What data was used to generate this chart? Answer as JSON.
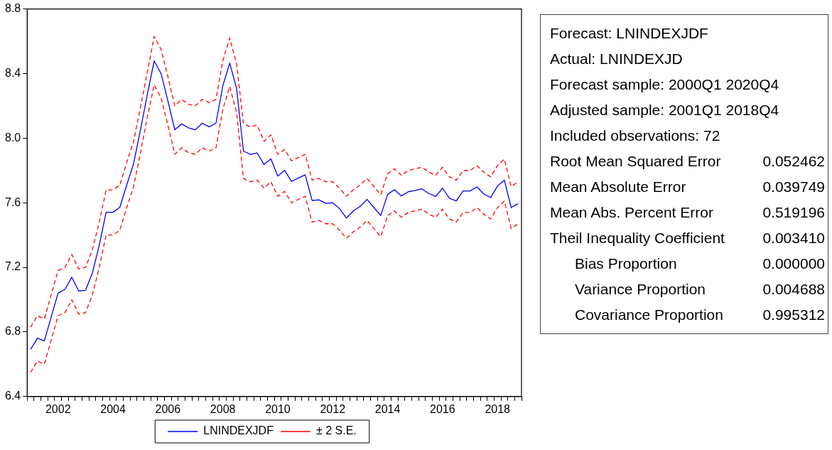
{
  "chart_data": [
    {
      "type": "line",
      "categories": [
        null,
        null,
        null,
        null,
        "2002",
        null,
        null,
        null,
        null,
        null,
        null,
        null,
        "2004",
        null,
        null,
        null,
        null,
        null,
        null,
        null,
        "2006",
        null,
        null,
        null,
        null,
        null,
        null,
        null,
        "2008",
        null,
        null,
        null,
        null,
        null,
        null,
        null,
        "2010",
        null,
        null,
        null,
        null,
        null,
        null,
        null,
        "2012",
        null,
        null,
        null,
        null,
        null,
        null,
        null,
        "2014",
        null,
        null,
        null,
        null,
        null,
        null,
        null,
        "2016",
        null,
        null,
        null,
        null,
        null,
        null,
        null,
        "2018",
        null,
        null,
        null
      ],
      "series": [
        {
          "name": "LNINDEXJDF",
          "color": "#0000ff",
          "line_style": "solid",
          "values": [
            6.692,
            6.762,
            6.744,
            6.893,
            7.04,
            7.064,
            7.139,
            7.054,
            7.058,
            7.165,
            7.337,
            7.541,
            7.541,
            7.572,
            7.71,
            7.843,
            8.05,
            8.27,
            8.478,
            8.4,
            8.23,
            8.052,
            8.088,
            8.064,
            8.052,
            8.093,
            8.07,
            8.093,
            8.325,
            8.465,
            8.308,
            7.92,
            7.9,
            7.908,
            7.837,
            7.872,
            7.765,
            7.801,
            7.732,
            7.753,
            7.773,
            7.614,
            7.618,
            7.596,
            7.6,
            7.564,
            7.505,
            7.549,
            7.578,
            7.621,
            7.57,
            7.521,
            7.652,
            7.681,
            7.642,
            7.668,
            7.676,
            7.686,
            7.657,
            7.639,
            7.69,
            7.628,
            7.611,
            7.673,
            7.673,
            7.698,
            7.655,
            7.632,
            7.703,
            7.74,
            7.57,
            7.595
          ]
        },
        {
          "name": "± 2 S.E.",
          "color": "#ff0000",
          "line_style": "dashed",
          "values": [
            6.83,
            6.9,
            6.88,
            7.03,
            7.18,
            7.2,
            7.28,
            7.19,
            7.2,
            7.31,
            7.48,
            7.68,
            7.68,
            7.71,
            7.85,
            7.98,
            8.19,
            8.41,
            8.63,
            8.55,
            8.38,
            8.2,
            8.24,
            8.21,
            8.2,
            8.24,
            8.22,
            8.24,
            8.48,
            8.62,
            8.46,
            8.09,
            8.07,
            8.08,
            7.98,
            8.02,
            7.9,
            7.93,
            7.86,
            7.88,
            7.9,
            7.74,
            7.75,
            7.73,
            7.73,
            7.69,
            7.64,
            7.68,
            7.71,
            7.75,
            7.7,
            7.65,
            7.78,
            7.81,
            7.77,
            7.8,
            7.81,
            7.82,
            7.79,
            7.77,
            7.82,
            7.76,
            7.74,
            7.8,
            7.8,
            7.83,
            7.79,
            7.76,
            7.83,
            7.87,
            7.7,
            7.73
          ]
        },
        {
          "color": "#ff0000",
          "line_style": "dashed",
          "values": [
            6.55,
            6.62,
            6.6,
            6.75,
            6.9,
            6.92,
            7.0,
            6.91,
            6.92,
            7.03,
            7.2,
            7.4,
            7.4,
            7.43,
            7.57,
            7.7,
            7.91,
            8.13,
            8.33,
            8.25,
            8.08,
            7.9,
            7.94,
            7.91,
            7.9,
            7.94,
            7.92,
            7.94,
            8.18,
            8.32,
            8.16,
            7.75,
            7.73,
            7.74,
            7.69,
            7.73,
            7.64,
            7.67,
            7.6,
            7.62,
            7.64,
            7.48,
            7.49,
            7.47,
            7.47,
            7.43,
            7.38,
            7.42,
            7.45,
            7.49,
            7.44,
            7.39,
            7.52,
            7.55,
            7.51,
            7.54,
            7.55,
            7.56,
            7.53,
            7.51,
            7.56,
            7.5,
            7.48,
            7.54,
            7.54,
            7.57,
            7.53,
            7.5,
            7.57,
            7.61,
            7.44,
            7.47
          ]
        }
      ],
      "ylim": [
        6.4,
        8.8
      ],
      "yticks": [
        6.4,
        6.8,
        7.2,
        7.6,
        {
          "value": 8.0,
          "label": "8.0"
        },
        8.4,
        8.8
      ],
      "grid": false,
      "legend": "bottom"
    },
    {
      "type": "other",
      "annotations": [
        "Forecast: LNINDEXJDF",
        "Actual: LNINDEXJD",
        "Forecast sample: 2000Q1 2020Q4",
        "Adjusted sample: 2001Q1 2018Q4",
        "Included observations: 72"
      ],
      "categories": [
        "Root Mean Squared Error",
        "Mean Absolute Error",
        "Mean Abs. Percent Error",
        "Theil Inequality Coefficient",
        "Bias Proportion",
        "Variance Proportion",
        "Covariance Proportion"
      ],
      "values": [
        0.052462,
        0.039749,
        0.519196,
        0.00341,
        0.0,
        0.004688,
        0.995312
      ],
      "value_labels": [
        "0.052462",
        "0.039749",
        "0.519196",
        "0.003410",
        "0.000000",
        "0.004688",
        "0.995312"
      ]
    }
  ]
}
